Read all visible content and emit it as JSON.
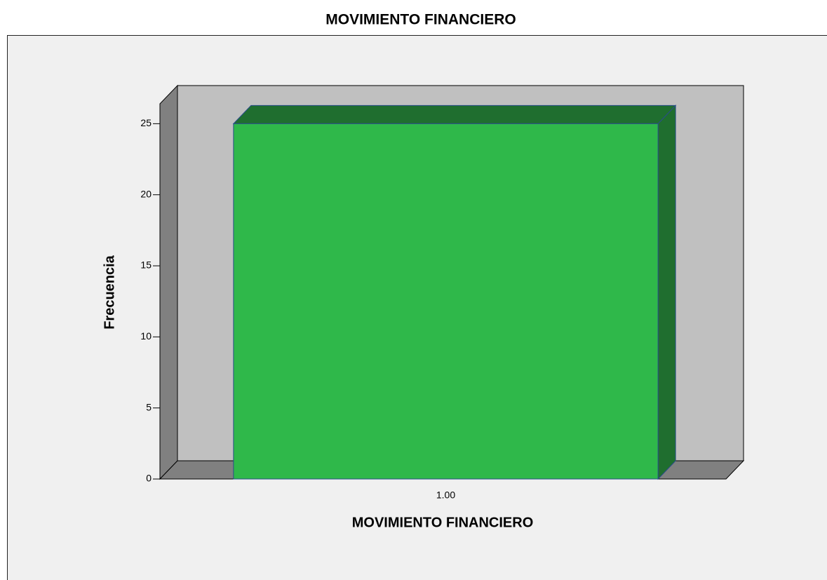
{
  "chart_data": {
    "type": "bar",
    "title": "MOVIMIENTO FINANCIERO",
    "categories": [
      "1.00"
    ],
    "values": [
      25
    ],
    "color": "#2fb84a",
    "side_color": "#1f6e2f",
    "xlabel": "MOVIMIENTO FINANCIERO",
    "ylabel": "Frecuencia",
    "ylim": [
      0,
      26.4
    ],
    "yticks": [
      0,
      5,
      10,
      15,
      20,
      25
    ]
  }
}
